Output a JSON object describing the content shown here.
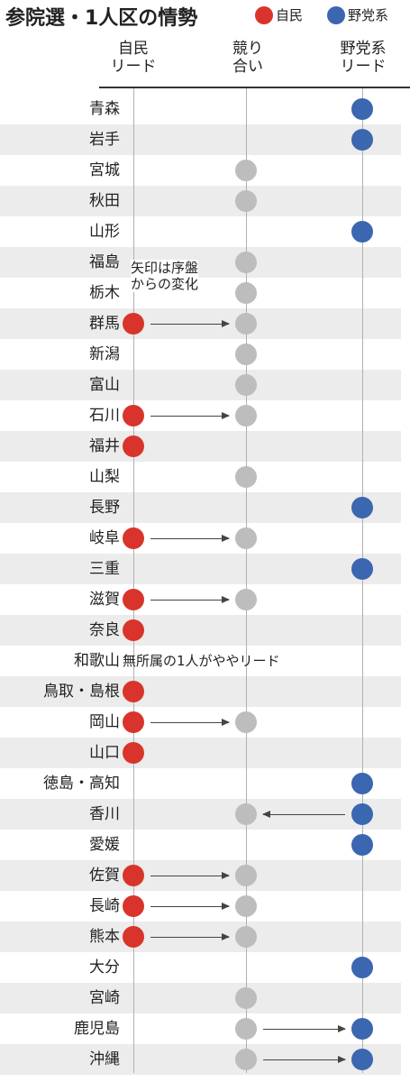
{
  "title": "参院選・1人区の情勢",
  "legend": [
    {
      "label": "自民",
      "color": "#d9342b"
    },
    {
      "label": "野党系",
      "color": "#3b66b0"
    }
  ],
  "colors": {
    "ldp": "#d9342b",
    "opposition": "#3b66b0",
    "contested": "#bdbdbd"
  },
  "columns": [
    {
      "key": "ldp",
      "line1": "自民",
      "line2": "リード"
    },
    {
      "key": "contested",
      "line1": "競り",
      "line2": "合い"
    },
    {
      "key": "opp",
      "line1": "野党系",
      "line2": "リード"
    }
  ],
  "arrow_note": {
    "line1": "矢印は序盤",
    "line2": "からの変化"
  },
  "chart_data": {
    "type": "table",
    "title": "参院選・1人区の情勢",
    "categories_note": "status per prefecture: ldp / contested / opp / independent; from = early-stage status when changed",
    "rows": [
      {
        "pref": "青森",
        "status": "opp"
      },
      {
        "pref": "岩手",
        "status": "opp"
      },
      {
        "pref": "宮城",
        "status": "contested"
      },
      {
        "pref": "秋田",
        "status": "contested"
      },
      {
        "pref": "山形",
        "status": "opp"
      },
      {
        "pref": "福島",
        "status": "contested"
      },
      {
        "pref": "栃木",
        "status": "contested"
      },
      {
        "pref": "群馬",
        "status": "contested",
        "from": "ldp"
      },
      {
        "pref": "新潟",
        "status": "contested"
      },
      {
        "pref": "富山",
        "status": "contested"
      },
      {
        "pref": "石川",
        "status": "contested",
        "from": "ldp"
      },
      {
        "pref": "福井",
        "status": "ldp"
      },
      {
        "pref": "山梨",
        "status": "contested"
      },
      {
        "pref": "長野",
        "status": "opp"
      },
      {
        "pref": "岐阜",
        "status": "contested",
        "from": "ldp"
      },
      {
        "pref": "三重",
        "status": "opp"
      },
      {
        "pref": "滋賀",
        "status": "contested",
        "from": "ldp"
      },
      {
        "pref": "奈良",
        "status": "ldp"
      },
      {
        "pref": "和歌山",
        "status": "independent",
        "note": "無所属の1人がややリード"
      },
      {
        "pref": "鳥取・島根",
        "status": "ldp"
      },
      {
        "pref": "岡山",
        "status": "contested",
        "from": "ldp"
      },
      {
        "pref": "山口",
        "status": "ldp"
      },
      {
        "pref": "徳島・高知",
        "status": "opp"
      },
      {
        "pref": "香川",
        "status": "contested",
        "from": "opp"
      },
      {
        "pref": "愛媛",
        "status": "opp"
      },
      {
        "pref": "佐賀",
        "status": "contested",
        "from": "ldp"
      },
      {
        "pref": "長崎",
        "status": "contested",
        "from": "ldp"
      },
      {
        "pref": "熊本",
        "status": "contested",
        "from": "ldp"
      },
      {
        "pref": "大分",
        "status": "opp"
      },
      {
        "pref": "宮崎",
        "status": "contested"
      },
      {
        "pref": "鹿児島",
        "status": "opp",
        "from": "contested"
      },
      {
        "pref": "沖縄",
        "status": "opp",
        "from": "contested"
      }
    ]
  }
}
